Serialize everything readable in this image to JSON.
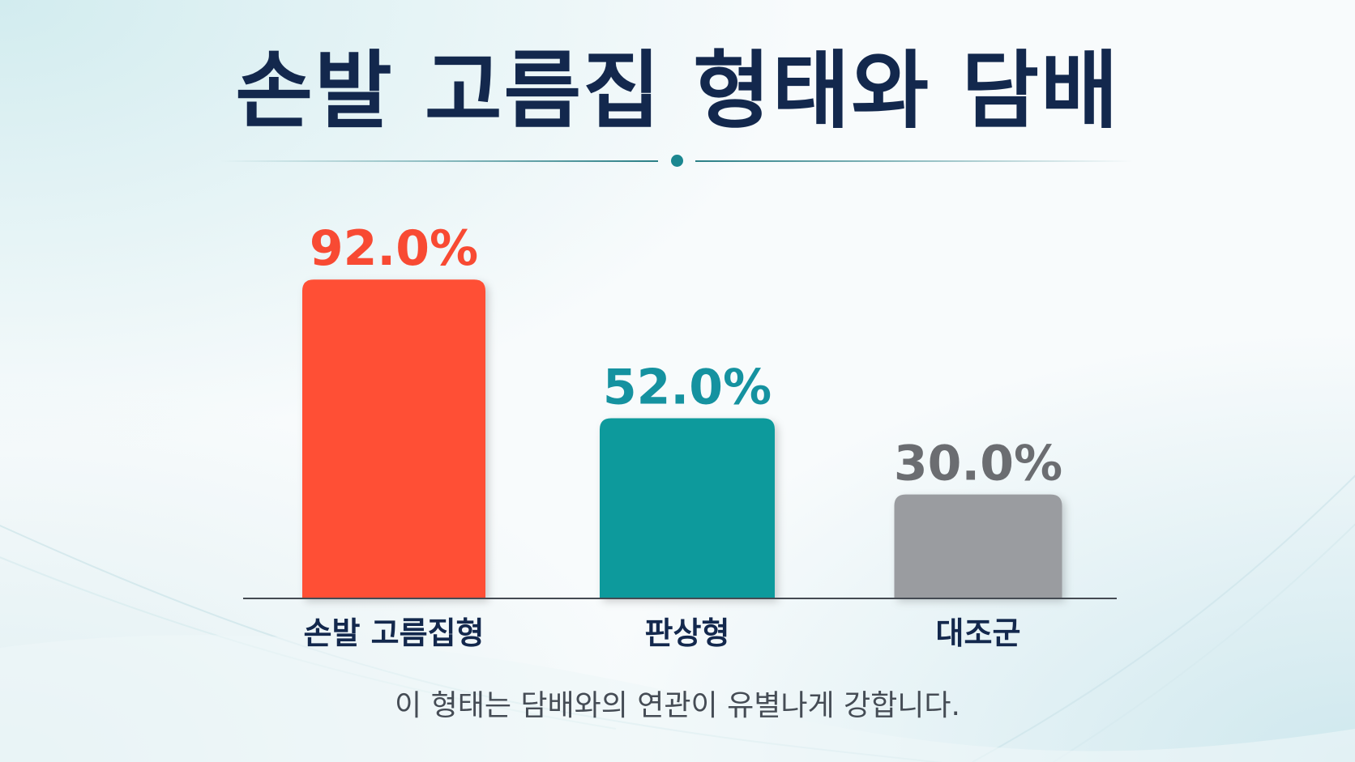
{
  "title": "손발 고름집 형태와 담배",
  "footnote": "이 형태는 담배와의 연관이 유별나게 강합니다.",
  "chart_data": {
    "type": "bar",
    "categories": [
      "손발 고름집형",
      "판상형",
      "대조군"
    ],
    "values": [
      92.0,
      52.0,
      30.0
    ],
    "value_labels": [
      "92.0%",
      "52.0%",
      "30.0%"
    ],
    "colors": [
      "#ff5036",
      "#119a9c",
      "#9a9ca0"
    ],
    "label_colors": [
      "#f84a33",
      "#1592a0",
      "#6b6d71"
    ],
    "ylim": [
      0,
      100
    ],
    "grid": false,
    "legend": "none",
    "title": "손발 고름집 형태와 담배",
    "xlabel": "",
    "ylabel": ""
  },
  "colors": {
    "title": "#13284d",
    "axis": "#444a52",
    "category_label": "#13284d",
    "accent": "#1b8790"
  }
}
